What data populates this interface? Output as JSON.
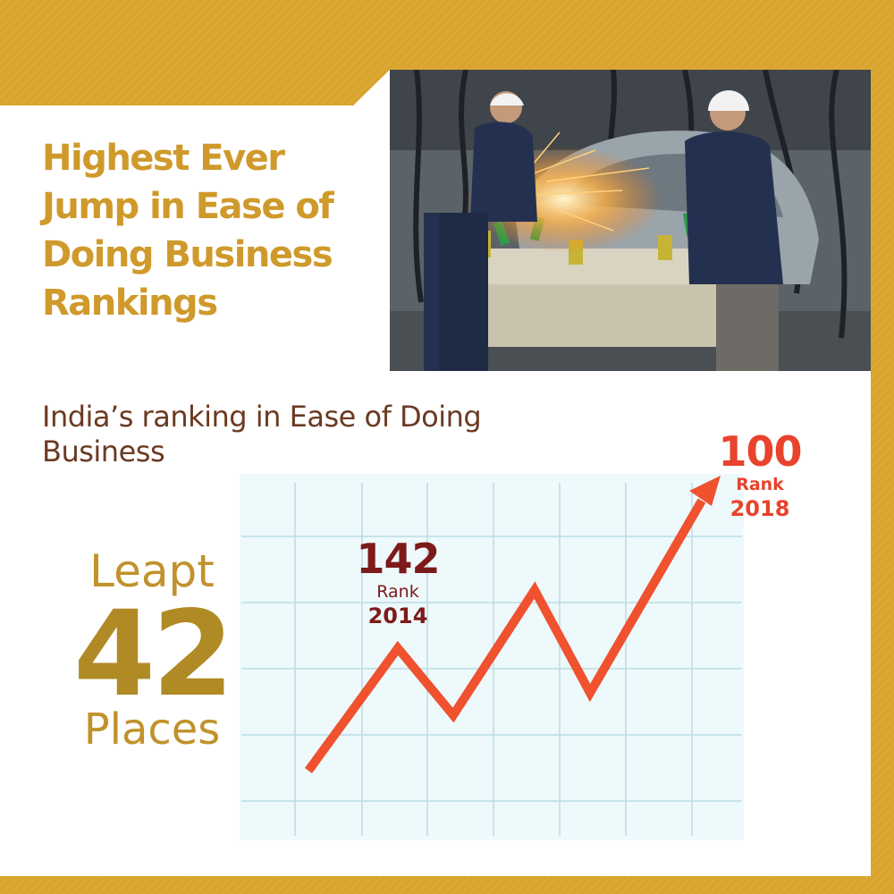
{
  "title": "Highest Ever Jump in Ease of Doing Business Rankings",
  "subtitle": "India’s ranking in Ease of Doing Business",
  "highlight": {
    "top": "Leapt",
    "number": "42",
    "bottom": "Places"
  },
  "labels": {
    "start": {
      "value": "142",
      "rank_word": "Rank",
      "year": "2014"
    },
    "end": {
      "value": "100",
      "rank_word": "Rank",
      "year": "2018"
    }
  },
  "colors": {
    "frame": "#d9a42c",
    "title": "#cf9a2b",
    "subtitle": "#6b3a22",
    "start_label": "#7d1a1a",
    "end_label": "#e8432c",
    "line": "#f0512f",
    "grid": "#b9dde4"
  },
  "photo": {
    "description_icon": "factory-workers-welding-photo"
  }
}
